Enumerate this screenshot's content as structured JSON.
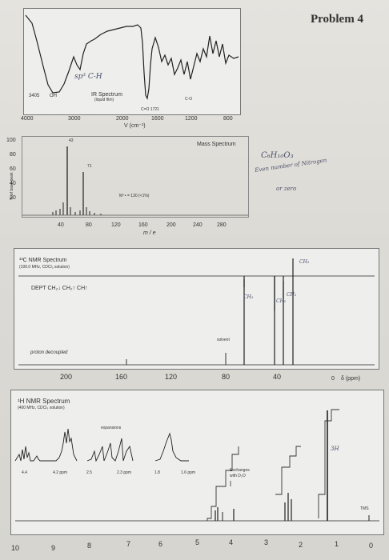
{
  "problem_title": "Problem 4",
  "ir": {
    "title": "IR Spectrum",
    "subtitle": "(liquid film)",
    "ticks": [
      "4000",
      "3000",
      "2000",
      "1600",
      "1200",
      "800"
    ],
    "axis_label": "V (cm⁻¹)",
    "peak_labels": [
      "3405",
      "OH",
      "sp³ C-H",
      "C=O 1721",
      "C-O"
    ]
  },
  "mass": {
    "title": "Mass Spectrum",
    "y_ticks": [
      "100",
      "80",
      "60",
      "40",
      "20"
    ],
    "y_label": "% of base peak",
    "x_ticks": [
      "40",
      "80",
      "120",
      "160",
      "200",
      "240",
      "280"
    ],
    "x_label": "m / e",
    "peak_labels": [
      "43",
      "71"
    ],
    "molecular_ion": "M⁺• = 130 (<1%)"
  },
  "c13": {
    "title": "¹³C NMR Spectrum",
    "subtitle": "(100.0 MHz, CDCl₃ solution)",
    "dept_label": "DEPT  CH₂↓ CH₂↑ CH↑",
    "proton_decoupled": "proton decoupled",
    "solvent": "solvent",
    "ticks": [
      "200",
      "160",
      "120",
      "80",
      "40",
      "0"
    ],
    "delta_label": "δ (ppm)",
    "peak_notes": [
      "CH₃",
      "CH₂",
      "CH₂",
      "CH₃"
    ]
  },
  "h1": {
    "title": "¹H NMR Spectrum",
    "subtitle": "(400 MHz, CDCl₃ solution)",
    "expansions": "expansions",
    "inset_ticks": [
      "4.4",
      "4.2 ppm",
      "2.5",
      "2.3 ppm",
      "1.8",
      "1.6 ppm"
    ],
    "exchange_note_1": "Exchanges",
    "exchange_note_2": "with D₂O",
    "integration_note": "3H",
    "tms": "TMS",
    "ticks": [
      "10",
      "9",
      "8",
      "7",
      "6",
      "5",
      "4",
      "3",
      "2",
      "1",
      "0"
    ]
  },
  "notes": {
    "formula": "C₆H₁₀O₃",
    "line1": "Even number of Nitrogen",
    "line2": "or zero"
  }
}
